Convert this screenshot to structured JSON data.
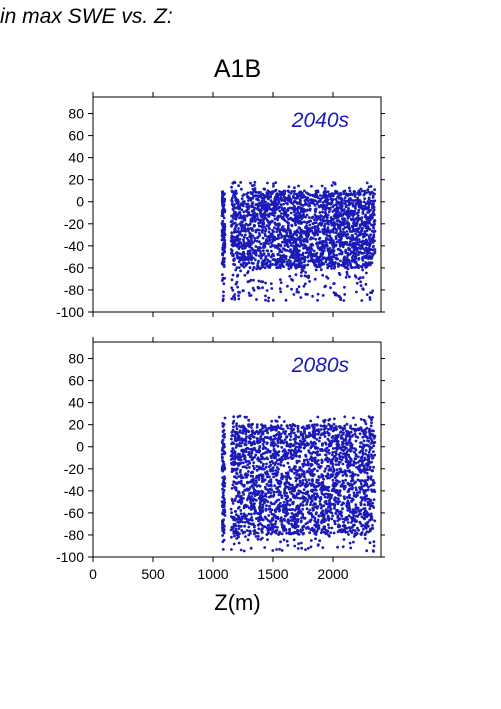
{
  "figure": {
    "header": "in max SWE vs. Z:",
    "scenario": "A1B",
    "xlabel": "Z(m)"
  },
  "colors": {
    "points": "#1a1ab8",
    "period_label": "#1a1ab8",
    "axes": "#000000"
  },
  "chart_data": [
    {
      "type": "scatter",
      "panel_label": "2040s",
      "xlim": [
        0,
        2400
      ],
      "ylim": [
        -100,
        95
      ],
      "xticks": [
        0,
        500,
        1000,
        1500,
        2000
      ],
      "xtick_labels_shown": false,
      "yticks": [
        -100,
        -80,
        -60,
        -40,
        -20,
        0,
        20,
        40,
        60,
        80
      ],
      "ytick_labels": [
        "-100",
        "-80",
        "-60",
        "-40",
        "-20",
        "0",
        "20",
        "40",
        "60",
        "80"
      ],
      "point_cloud": {
        "x_range": [
          1070,
          2350
        ],
        "y_min": -90,
        "y_max": 18,
        "y_core": [
          -60,
          10
        ],
        "note_density": "dense from Z≈1150 to 2350; sparse column at Z≈1080-1100"
      }
    },
    {
      "type": "scatter",
      "panel_label": "2080s",
      "xlim": [
        0,
        2400
      ],
      "ylim": [
        -100,
        95
      ],
      "xticks": [
        0,
        500,
        1000,
        1500,
        2000
      ],
      "xtick_labels": [
        "0",
        "500",
        "1000",
        "1500",
        "2000"
      ],
      "yticks": [
        -100,
        -80,
        -60,
        -40,
        -20,
        0,
        20,
        40,
        60,
        80
      ],
      "ytick_labels": [
        "-100",
        "-80",
        "-60",
        "-40",
        "-20",
        "0",
        "20",
        "40",
        "60",
        "80"
      ],
      "xlabel": "Z(m)",
      "point_cloud": {
        "x_range": [
          1070,
          2350
        ],
        "y_min": -95,
        "y_max": 28,
        "y_core": [
          -80,
          20
        ],
        "note_density": "dense from Z≈1150 to 2350; sparse column at Z≈1080-1100"
      }
    }
  ]
}
